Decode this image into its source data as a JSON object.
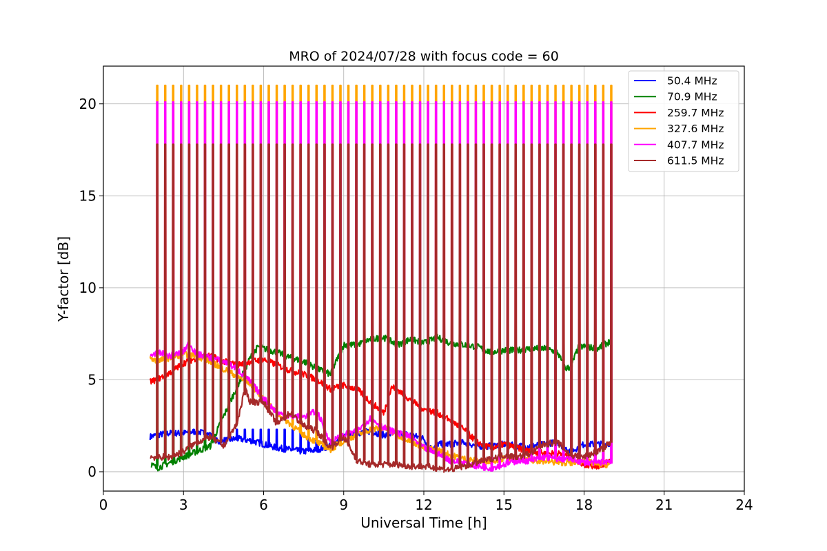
{
  "chart_data": {
    "type": "line",
    "title": "MRO of 2024/07/28 with focus code = 60",
    "xlabel": "Universal Time [h]",
    "ylabel": "Y-factor [dB]",
    "xlim": [
      0,
      24
    ],
    "ylim": [
      -1.05,
      22.05
    ],
    "xticks": [
      0,
      3,
      6,
      9,
      12,
      15,
      18,
      21,
      24
    ],
    "yticks": [
      0,
      5,
      10,
      15,
      20
    ],
    "grid": true,
    "legend_position": "top-right",
    "spikes": {
      "start": 2.0,
      "end": 19.0,
      "count": 58,
      "peaks": {
        "50.4 MHz": 2.3,
        "70.9 MHz": 8.3,
        "259.7 MHz": 17.8,
        "327.6 MHz": 21.0,
        "407.7 MHz": 20.1,
        "611.5 MHz": 17.8
      }
    },
    "series": [
      {
        "name": " 50.4 MHz",
        "color": "#0000ff",
        "x": [
          1.75,
          2.0,
          2.5,
          3.0,
          3.5,
          4.0,
          4.3,
          4.5,
          5.0,
          5.5,
          6.0,
          6.5,
          7.0,
          7.5,
          8.0,
          8.5,
          9.0,
          9.5,
          10.0,
          10.5,
          11.0,
          11.5,
          12.0,
          12.3,
          12.5,
          13.0,
          13.5,
          14.0,
          14.5,
          15.0,
          15.5,
          16.0,
          16.5,
          17.0,
          17.5,
          18.0,
          18.5,
          19.0
        ],
        "y": [
          1.9,
          2.0,
          2.1,
          2.1,
          2.2,
          2.0,
          1.6,
          1.7,
          1.8,
          1.7,
          1.5,
          1.3,
          1.2,
          1.1,
          1.2,
          1.4,
          1.9,
          2.1,
          2.2,
          2.0,
          2.1,
          2.0,
          1.8,
          1.2,
          1.5,
          1.5,
          1.6,
          1.4,
          1.4,
          1.5,
          1.4,
          1.4,
          1.5,
          1.6,
          1.1,
          1.5,
          1.5,
          1.5
        ]
      },
      {
        "name": " 70.9 MHz",
        "color": "#008000",
        "x": [
          1.8,
          2.0,
          2.5,
          3.0,
          3.5,
          4.0,
          4.5,
          5.0,
          5.5,
          5.8,
          6.0,
          6.5,
          7.0,
          7.5,
          8.0,
          8.5,
          9.0,
          9.5,
          10.0,
          10.5,
          11.0,
          11.5,
          12.0,
          12.5,
          13.0,
          13.5,
          14.0,
          14.5,
          15.0,
          15.5,
          16.0,
          16.5,
          17.0,
          17.3,
          17.5,
          17.8,
          18.0,
          18.5,
          19.0
        ],
        "y": [
          0.4,
          0.2,
          0.5,
          0.8,
          1.1,
          1.4,
          3.0,
          4.6,
          6.2,
          6.8,
          6.7,
          6.5,
          6.2,
          6.0,
          5.6,
          5.3,
          6.9,
          6.9,
          7.2,
          7.3,
          6.9,
          7.2,
          7.0,
          7.3,
          7.0,
          6.9,
          6.8,
          6.5,
          6.6,
          6.6,
          6.7,
          6.7,
          6.5,
          5.6,
          5.7,
          6.8,
          6.8,
          6.7,
          7.1
        ]
      },
      {
        "name": " 259.7 MHz",
        "color": "#ff0000",
        "x": [
          1.75,
          2.0,
          2.5,
          3.0,
          3.5,
          4.0,
          4.5,
          5.0,
          5.5,
          6.0,
          6.5,
          7.0,
          7.5,
          8.0,
          8.5,
          9.0,
          9.5,
          10.0,
          10.5,
          10.8,
          11.0,
          11.5,
          12.0,
          12.5,
          13.0,
          13.5,
          14.0,
          14.5,
          15.0,
          15.5,
          16.0,
          16.5,
          17.0,
          17.5,
          18.0,
          18.5,
          19.0
        ],
        "y": [
          4.9,
          5.0,
          5.4,
          5.9,
          6.2,
          6.3,
          6.0,
          5.8,
          6.0,
          6.1,
          5.8,
          5.5,
          5.3,
          5.0,
          4.5,
          4.7,
          4.5,
          3.8,
          3.2,
          4.6,
          4.5,
          3.9,
          3.4,
          3.2,
          2.8,
          2.3,
          1.6,
          1.3,
          1.5,
          1.3,
          1.1,
          1.0,
          1.0,
          0.8,
          0.4,
          0.3,
          0.6
        ]
      },
      {
        "name": " 327.6 MHz",
        "color": "#ffa500",
        "x": [
          1.75,
          2.0,
          2.5,
          3.0,
          3.5,
          4.0,
          4.5,
          5.0,
          5.5,
          6.0,
          6.5,
          7.0,
          7.5,
          8.0,
          8.5,
          9.0,
          9.5,
          10.0,
          10.5,
          11.0,
          11.5,
          12.0,
          12.5,
          13.0,
          13.5,
          14.0,
          14.5,
          15.0,
          15.5,
          16.0,
          16.5,
          17.0,
          17.5,
          18.0,
          18.5,
          19.0
        ],
        "y": [
          6.2,
          6.0,
          6.2,
          6.4,
          6.3,
          6.0,
          5.6,
          5.2,
          4.8,
          3.9,
          3.2,
          2.6,
          2.0,
          1.6,
          1.2,
          1.7,
          2.0,
          2.3,
          2.4,
          2.0,
          1.7,
          1.3,
          1.2,
          0.9,
          0.7,
          0.6,
          0.6,
          0.7,
          0.7,
          0.6,
          0.6,
          0.5,
          0.5,
          0.6,
          0.4,
          0.4
        ]
      },
      {
        "name": " 407.7 MHz",
        "color": "#ff00ff",
        "x": [
          1.75,
          2.0,
          2.5,
          3.0,
          3.2,
          3.5,
          4.0,
          4.5,
          5.0,
          5.5,
          6.0,
          6.5,
          7.0,
          7.5,
          8.0,
          8.5,
          9.0,
          9.5,
          10.0,
          10.5,
          11.0,
          11.5,
          12.0,
          12.5,
          13.0,
          13.5,
          14.0,
          14.5,
          15.0,
          15.5,
          16.0,
          16.5,
          17.0,
          17.5,
          18.0,
          18.5,
          19.0
        ],
        "y": [
          6.3,
          6.5,
          6.3,
          6.5,
          7.0,
          6.4,
          6.2,
          6.0,
          5.6,
          4.9,
          4.0,
          3.2,
          3.0,
          3.0,
          3.3,
          1.6,
          2.0,
          2.2,
          2.9,
          2.4,
          2.1,
          1.9,
          1.3,
          1.0,
          0.6,
          0.5,
          0.3,
          0.2,
          0.4,
          0.6,
          0.6,
          0.8,
          0.7,
          0.7,
          0.5,
          0.5,
          0.6
        ]
      },
      {
        "name": " 611.5 MHz",
        "color": "#a52a2a",
        "x": [
          1.75,
          2.0,
          2.5,
          3.0,
          3.5,
          4.0,
          4.5,
          5.0,
          5.3,
          5.5,
          6.0,
          6.5,
          7.0,
          7.5,
          8.0,
          8.5,
          9.0,
          9.5,
          10.0,
          10.5,
          11.0,
          11.5,
          12.0,
          12.5,
          13.0,
          13.5,
          14.0,
          14.5,
          15.0,
          15.5,
          16.0,
          16.5,
          17.0,
          17.5,
          18.0,
          18.5,
          19.0
        ],
        "y": [
          0.8,
          0.8,
          0.8,
          1.1,
          1.6,
          1.9,
          1.4,
          2.6,
          4.5,
          3.8,
          3.8,
          2.6,
          3.2,
          2.5,
          2.2,
          1.3,
          1.9,
          0.6,
          0.4,
          0.4,
          0.4,
          0.3,
          0.3,
          0.2,
          0.1,
          0.3,
          0.5,
          0.7,
          0.9,
          0.8,
          1.0,
          1.5,
          1.6,
          0.9,
          0.8,
          1.1,
          1.6
        ]
      }
    ]
  }
}
